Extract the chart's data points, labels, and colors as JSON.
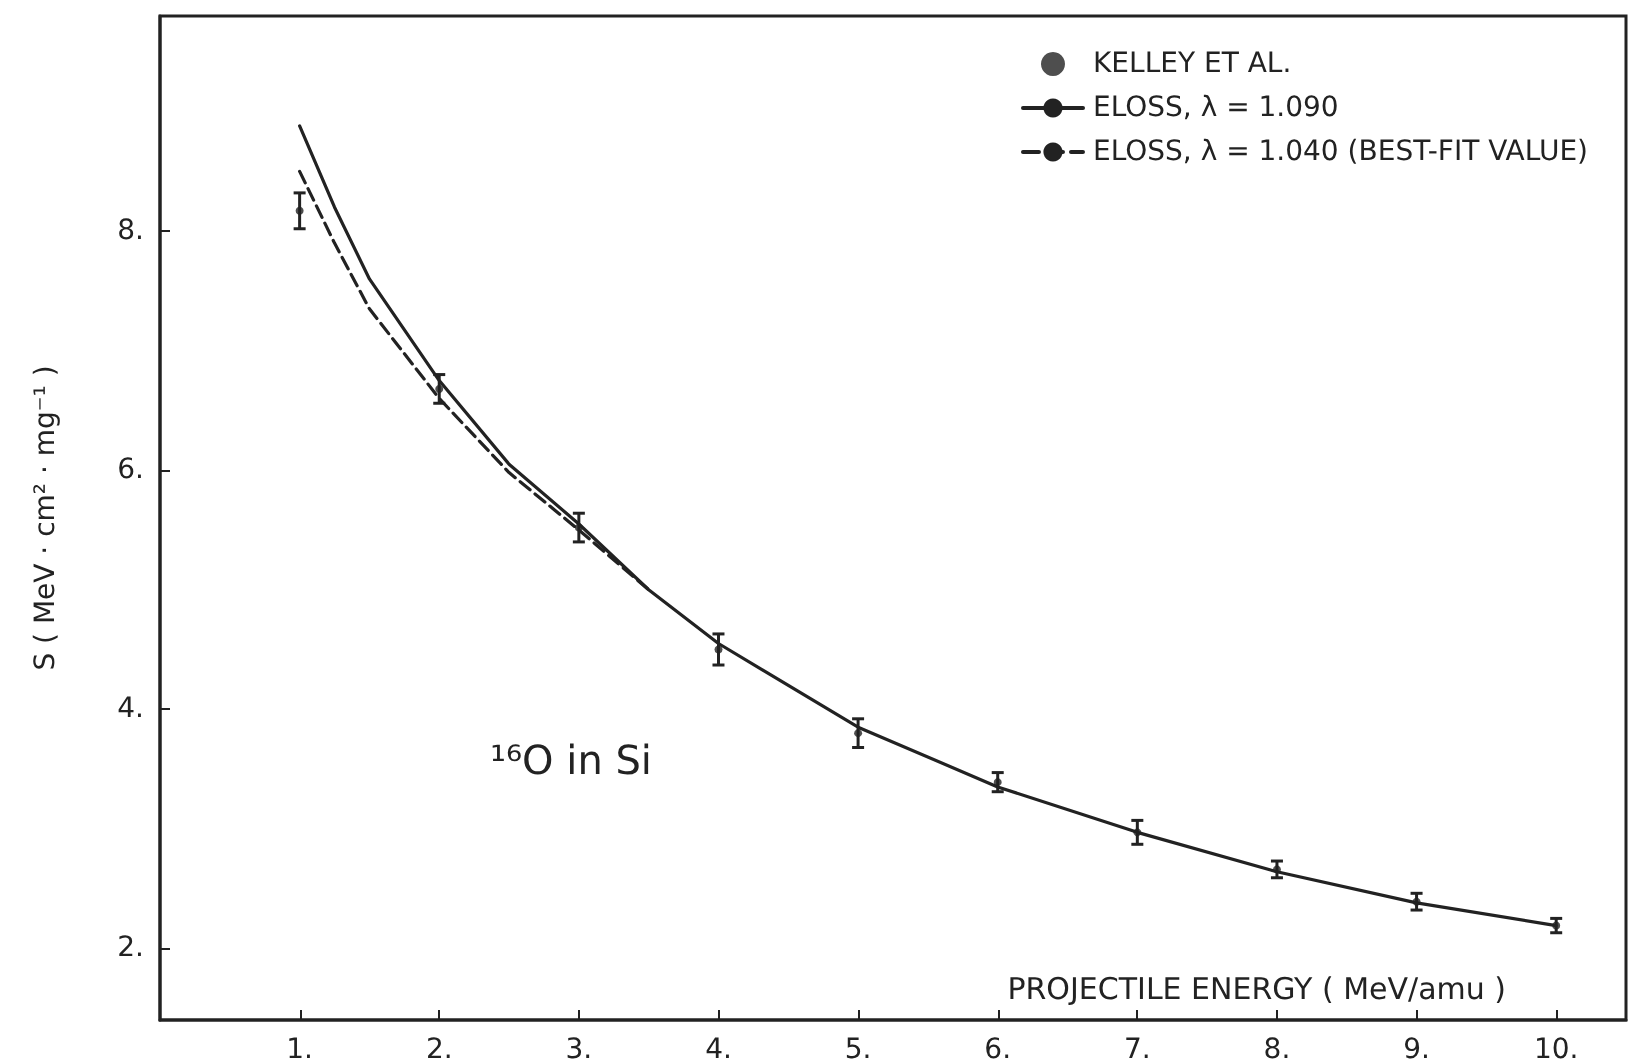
{
  "chart_data": {
    "type": "line",
    "xlabel": "PROJECTILE ENERGY ( MeV/amu )",
    "ylabel": "S ( MeV · cm² · mg⁻¹ )",
    "annotations": [
      "¹⁶O in Si"
    ],
    "xlim": [
      0,
      10.5
    ],
    "xticks": [
      {
        "value": 1,
        "label": "1."
      },
      {
        "value": 2,
        "label": "2."
      },
      {
        "value": 3,
        "label": "3."
      },
      {
        "value": 4,
        "label": "4."
      },
      {
        "value": 5,
        "label": "5."
      },
      {
        "value": 6,
        "label": "6."
      },
      {
        "value": 7,
        "label": "7."
      },
      {
        "value": 8,
        "label": "8."
      },
      {
        "value": 9,
        "label": "9."
      },
      {
        "value": 10,
        "label": "10."
      }
    ],
    "ylim": [
      1.4,
      9.8
    ],
    "yticks": [
      {
        "value": 2,
        "label": "2."
      },
      {
        "value": 4,
        "label": "4."
      },
      {
        "value": 6,
        "label": "6."
      },
      {
        "value": 8,
        "label": "8."
      }
    ],
    "grid": false,
    "legend": "top right",
    "series": [
      {
        "name": "KELLEY ET AL.",
        "type": "scatter",
        "color": "#222222",
        "marker": "circle",
        "x": [
          1,
          2,
          3,
          4,
          5,
          6,
          7,
          8,
          9,
          10
        ],
        "values": [
          8.17,
          6.68,
          5.52,
          4.5,
          3.8,
          3.39,
          2.97,
          2.66,
          2.39,
          2.19
        ],
        "errors": [
          0.15,
          0.12,
          0.12,
          0.13,
          0.12,
          0.08,
          0.1,
          0.07,
          0.07,
          0.06
        ]
      },
      {
        "name": "ELOSS, λ = 1.090",
        "color": "#222222",
        "line_style": "solid",
        "marker": "none",
        "x": [
          1,
          1.25,
          1.5,
          2,
          2.5,
          3,
          3.5,
          4,
          5,
          6,
          7,
          8,
          9,
          10
        ],
        "values": [
          8.88,
          8.2,
          7.6,
          6.75,
          6.05,
          5.55,
          5.0,
          4.55,
          3.85,
          3.35,
          2.97,
          2.64,
          2.38,
          2.19
        ]
      },
      {
        "name": "ELOSS, λ = 1.040 (BEST-FIT VALUE)",
        "color": "#222222",
        "line_style": "dashed",
        "marker": "none",
        "x": [
          1,
          1.25,
          1.5,
          2,
          2.5,
          3,
          3.5
        ],
        "values": [
          8.5,
          7.9,
          7.35,
          6.6,
          5.98,
          5.5,
          5.0
        ]
      }
    ]
  }
}
